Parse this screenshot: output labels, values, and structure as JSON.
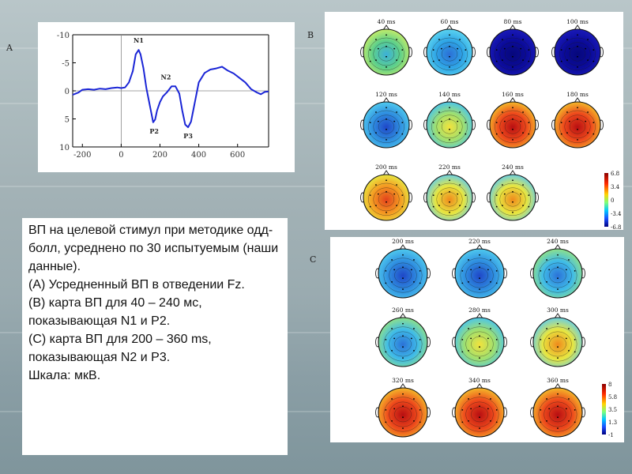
{
  "panels": {
    "a_label": "A",
    "b_label": "B",
    "c_label": "C"
  },
  "chart_data": {
    "type": "line",
    "title": "",
    "xlabel": "",
    "ylabel": "",
    "x_ticks": [
      -200,
      0,
      200,
      400,
      600
    ],
    "y_ticks": [
      -10,
      -5,
      0,
      5,
      10
    ],
    "xlim": [
      -250,
      760
    ],
    "ylim": [
      10,
      -10
    ],
    "y_inverted": true,
    "series": [
      {
        "name": "Fz",
        "x": [
          -250,
          -220,
          -200,
          -170,
          -140,
          -110,
          -80,
          -50,
          -20,
          0,
          20,
          40,
          60,
          75,
          90,
          100,
          115,
          130,
          150,
          165,
          175,
          185,
          200,
          215,
          235,
          260,
          280,
          300,
          315,
          330,
          345,
          360,
          380,
          400,
          430,
          460,
          490,
          520,
          550,
          580,
          610,
          640,
          670,
          700,
          720,
          740,
          760
        ],
        "y": [
          0.7,
          0.3,
          -0.2,
          -0.3,
          -0.2,
          -0.4,
          -0.3,
          -0.5,
          -0.6,
          -0.5,
          -0.6,
          -1.5,
          -3.5,
          -6.5,
          -7.3,
          -6.5,
          -4,
          -0.5,
          3,
          5.6,
          5.1,
          3.5,
          2,
          1,
          0.3,
          -0.8,
          -0.8,
          0.5,
          3.5,
          6,
          6.5,
          5.5,
          2,
          -1.5,
          -3.2,
          -3.8,
          -4,
          -4.3,
          -3.6,
          -3.1,
          -2.3,
          -1.5,
          -0.3,
          0.3,
          0.6,
          0.2,
          0.1
        ]
      }
    ],
    "annotations": [
      {
        "text": "N1",
        "x": 90,
        "y": -7.3
      },
      {
        "text": "P2",
        "x": 170,
        "y": 5.6
      },
      {
        "text": "N2",
        "x": 255,
        "y": -0.8
      },
      {
        "text": "P3",
        "x": 345,
        "y": 6.5
      }
    ]
  },
  "maps_b": {
    "rows": [
      [
        {
          "label": "40 ms",
          "scheme": "green"
        },
        {
          "label": "60 ms",
          "scheme": "cyan"
        },
        {
          "label": "80 ms",
          "scheme": "blue"
        },
        {
          "label": "100 ms",
          "scheme": "blue"
        }
      ],
      [
        {
          "label": "120 ms",
          "scheme": "cyanblue"
        },
        {
          "label": "140 ms",
          "scheme": "greenyellow"
        },
        {
          "label": "160 ms",
          "scheme": "red"
        },
        {
          "label": "180 ms",
          "scheme": "red"
        }
      ],
      [
        {
          "label": "200 ms",
          "scheme": "orange"
        },
        {
          "label": "220 ms",
          "scheme": "yelloworange"
        },
        {
          "label": "240 ms",
          "scheme": "yelloworange"
        }
      ]
    ],
    "scale": [
      "6.8",
      "3.4",
      "0",
      "-3.4",
      "-6.8"
    ]
  },
  "maps_c": {
    "rows": [
      [
        {
          "label": "200 ms",
          "scheme": "cyanblue"
        },
        {
          "label": "220 ms",
          "scheme": "cyanblue"
        },
        {
          "label": "240 ms",
          "scheme": "cyangreen"
        }
      ],
      [
        {
          "label": "260 ms",
          "scheme": "cyangreen"
        },
        {
          "label": "280 ms",
          "scheme": "greenyellow"
        },
        {
          "label": "300 ms",
          "scheme": "yelloworange"
        }
      ],
      [
        {
          "label": "320 ms",
          "scheme": "red"
        },
        {
          "label": "340 ms",
          "scheme": "red"
        },
        {
          "label": "360 ms",
          "scheme": "red"
        }
      ]
    ],
    "scale": [
      "8",
      "5.8",
      "3.5",
      "1.3",
      "-1"
    ]
  },
  "colors": {
    "trace": "#1a25d6",
    "axis": "#000000"
  },
  "caption": {
    "line1": "ВП на целевой стимул при методике одд-болл, усреднено по 30 испытуемым (наши данные).",
    "line2": "(А) Усредненный ВП в отведении Fz.",
    "line3": "(В) карта ВП для 40 – 240 мс, показывающая N1 и P2.",
    "line4": "(С) карта ВП для 200 – 360 ms, показывающая N2 и P3.",
    "line5": "Шкала: мкВ."
  }
}
